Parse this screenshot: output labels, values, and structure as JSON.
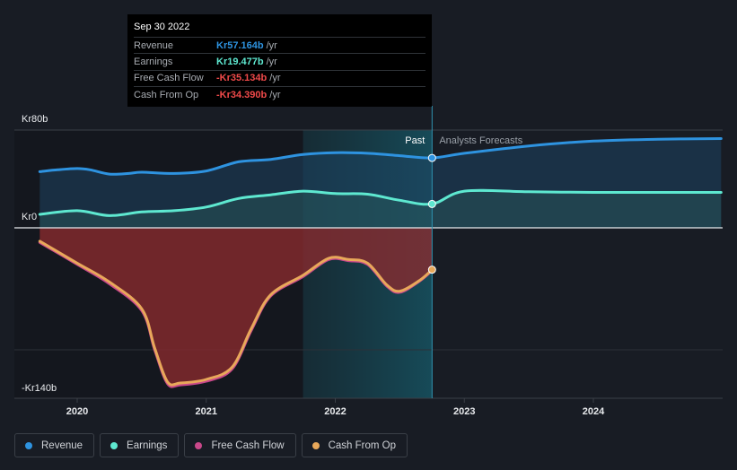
{
  "tooltip": {
    "date": "Sep 30 2022",
    "rows": [
      {
        "label": "Revenue",
        "value": "Kr57.164b",
        "unit": "/yr",
        "color": "#2e93e0"
      },
      {
        "label": "Earnings",
        "value": "Kr19.477b",
        "unit": "/yr",
        "color": "#5ee8d0"
      },
      {
        "label": "Free Cash Flow",
        "value": "-Kr35.134b",
        "unit": "/yr",
        "color": "#f04a4a"
      },
      {
        "label": "Cash From Op",
        "value": "-Kr34.390b",
        "unit": "/yr",
        "color": "#f04a4a"
      }
    ]
  },
  "legend": [
    {
      "label": "Revenue",
      "color": "#2e93e0"
    },
    {
      "label": "Earnings",
      "color": "#5ee8d0"
    },
    {
      "label": "Free Cash Flow",
      "color": "#c9488a"
    },
    {
      "label": "Cash From Op",
      "color": "#e8a85a"
    }
  ],
  "chart_data": {
    "type": "line",
    "title": "",
    "y_unit": "billion NOK",
    "y_tick_labels": [
      {
        "value": 80,
        "label": "Kr80b"
      },
      {
        "value": 0,
        "label": "Kr0"
      },
      {
        "value": -140,
        "label": "-Kr140b"
      }
    ],
    "ylim": [
      -140,
      80
    ],
    "xlim": [
      2019.7,
      2024.99
    ],
    "x_tick_labels": [
      {
        "value": 2020,
        "label": "2020"
      },
      {
        "value": 2021,
        "label": "2021"
      },
      {
        "value": 2022,
        "label": "2022"
      },
      {
        "value": 2023,
        "label": "2023"
      },
      {
        "value": 2024,
        "label": "2024"
      }
    ],
    "divider_x": 2022.75,
    "highlight_start_x": 2021.75,
    "past_label": "Past",
    "forecast_label": "Analysts Forecasts",
    "series": [
      {
        "name": "Revenue",
        "color": "#2e93e0",
        "forecast": true,
        "points": [
          [
            2019.71,
            46
          ],
          [
            2019.85,
            47.5
          ],
          [
            2020.0,
            48.5
          ],
          [
            2020.1,
            47.5
          ],
          [
            2020.25,
            44
          ],
          [
            2020.4,
            44.5
          ],
          [
            2020.5,
            45.5
          ],
          [
            2020.75,
            44.5
          ],
          [
            2021.0,
            46.5
          ],
          [
            2021.25,
            54
          ],
          [
            2021.5,
            56
          ],
          [
            2021.75,
            60
          ],
          [
            2022.0,
            61.5
          ],
          [
            2022.25,
            61
          ],
          [
            2022.5,
            59
          ],
          [
            2022.75,
            57.2
          ],
          [
            2023.0,
            61
          ],
          [
            2023.5,
            67
          ],
          [
            2024.0,
            71
          ],
          [
            2024.5,
            72.5
          ],
          [
            2024.99,
            73
          ]
        ]
      },
      {
        "name": "Earnings",
        "color": "#5ee8d0",
        "forecast": true,
        "points": [
          [
            2019.71,
            11
          ],
          [
            2020.0,
            14
          ],
          [
            2020.25,
            10
          ],
          [
            2020.5,
            13
          ],
          [
            2020.75,
            14
          ],
          [
            2021.0,
            17
          ],
          [
            2021.25,
            24
          ],
          [
            2021.5,
            27
          ],
          [
            2021.75,
            30
          ],
          [
            2022.0,
            28
          ],
          [
            2022.25,
            27.5
          ],
          [
            2022.5,
            22.5
          ],
          [
            2022.75,
            19.5
          ],
          [
            2023.0,
            30
          ],
          [
            2023.5,
            29.5
          ],
          [
            2024.0,
            29
          ],
          [
            2024.5,
            29
          ],
          [
            2024.99,
            29
          ]
        ]
      },
      {
        "name": "Free Cash Flow",
        "color": "#c9488a",
        "forecast": false,
        "points": [
          [
            2019.71,
            -12
          ],
          [
            2020.0,
            -30
          ],
          [
            2020.25,
            -46
          ],
          [
            2020.5,
            -68
          ],
          [
            2020.6,
            -100
          ],
          [
            2020.7,
            -128
          ],
          [
            2020.8,
            -129
          ],
          [
            2021.0,
            -126
          ],
          [
            2021.2,
            -116
          ],
          [
            2021.35,
            -84
          ],
          [
            2021.5,
            -56
          ],
          [
            2021.75,
            -40
          ],
          [
            2021.95,
            -26
          ],
          [
            2022.1,
            -27
          ],
          [
            2022.25,
            -30
          ],
          [
            2022.4,
            -48
          ],
          [
            2022.5,
            -53
          ],
          [
            2022.65,
            -44
          ],
          [
            2022.75,
            -35.1
          ]
        ]
      },
      {
        "name": "Cash From Op",
        "color": "#e8a85a",
        "forecast": false,
        "points": [
          [
            2019.71,
            -11
          ],
          [
            2020.0,
            -29
          ],
          [
            2020.25,
            -44.5
          ],
          [
            2020.5,
            -66.5
          ],
          [
            2020.6,
            -98.5
          ],
          [
            2020.7,
            -126.5
          ],
          [
            2020.8,
            -127.5
          ],
          [
            2021.0,
            -124.5
          ],
          [
            2021.2,
            -114.5
          ],
          [
            2021.35,
            -82.5
          ],
          [
            2021.5,
            -55
          ],
          [
            2021.75,
            -39
          ],
          [
            2021.95,
            -25
          ],
          [
            2022.1,
            -26
          ],
          [
            2022.25,
            -29
          ],
          [
            2022.4,
            -47
          ],
          [
            2022.5,
            -52
          ],
          [
            2022.65,
            -43.5
          ],
          [
            2022.75,
            -34.4
          ]
        ]
      }
    ]
  }
}
